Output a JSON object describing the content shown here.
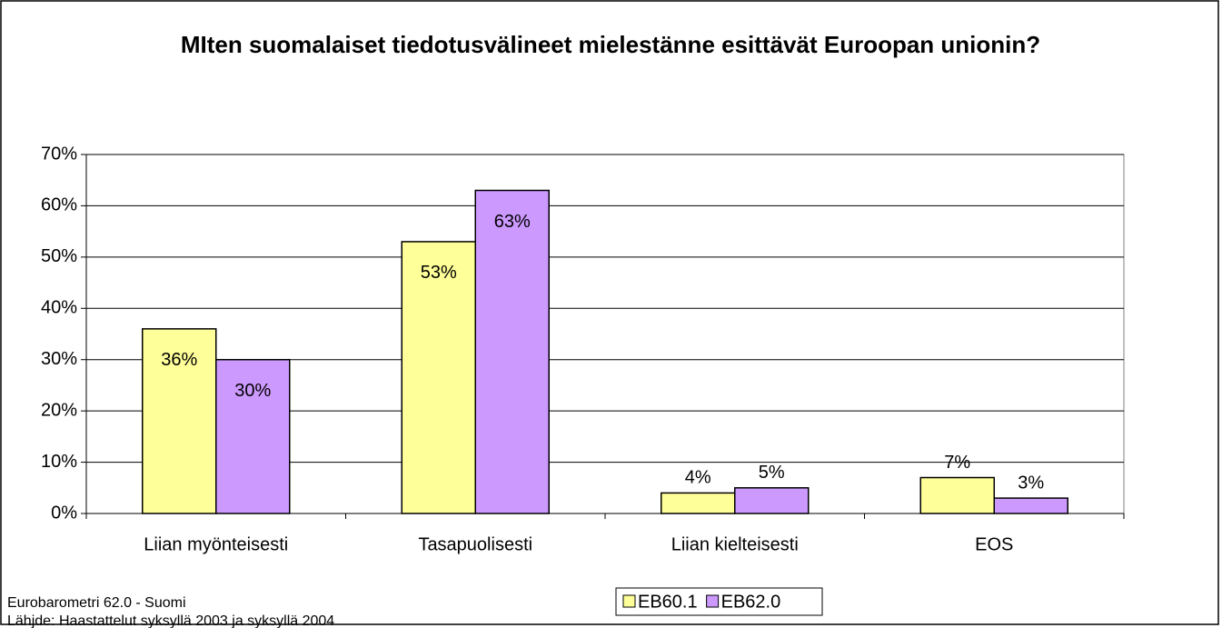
{
  "chart_data": {
    "type": "bar",
    "title": "MIten suomalaiset tiedotusvälineet mielestänne esittävät Euroopan unionin?",
    "categories": [
      "Liian myönteisesti",
      "Tasapuolisesti",
      "Liian kielteisesti",
      "EOS"
    ],
    "series": [
      {
        "name": "EB60.1",
        "color": "#ffff99",
        "values": [
          36,
          53,
          4,
          7
        ],
        "value_labels": [
          "36%",
          "53%",
          "4%",
          "7%"
        ]
      },
      {
        "name": "EB62.0",
        "color": "#cc99ff",
        "values": [
          30,
          63,
          5,
          3
        ],
        "value_labels": [
          "30%",
          "63%",
          "5%",
          "3%"
        ]
      }
    ],
    "ylim": [
      0,
      70
    ],
    "yticks": [
      {
        "value": 0,
        "label": "0%"
      },
      {
        "value": 10,
        "label": "10%"
      },
      {
        "value": 20,
        "label": "20%"
      },
      {
        "value": 30,
        "label": "30%"
      },
      {
        "value": 40,
        "label": "40%"
      },
      {
        "value": 50,
        "label": "50%"
      },
      {
        "value": 60,
        "label": "60%"
      },
      {
        "value": 70,
        "label": "70%"
      }
    ],
    "grid": true,
    "legend": "bottom",
    "notes": [
      "Eurobarometri 62.0 - Suomi",
      "Lähjde: Haastattelut syksyllä 2003 ja syksyllä 2004"
    ]
  }
}
